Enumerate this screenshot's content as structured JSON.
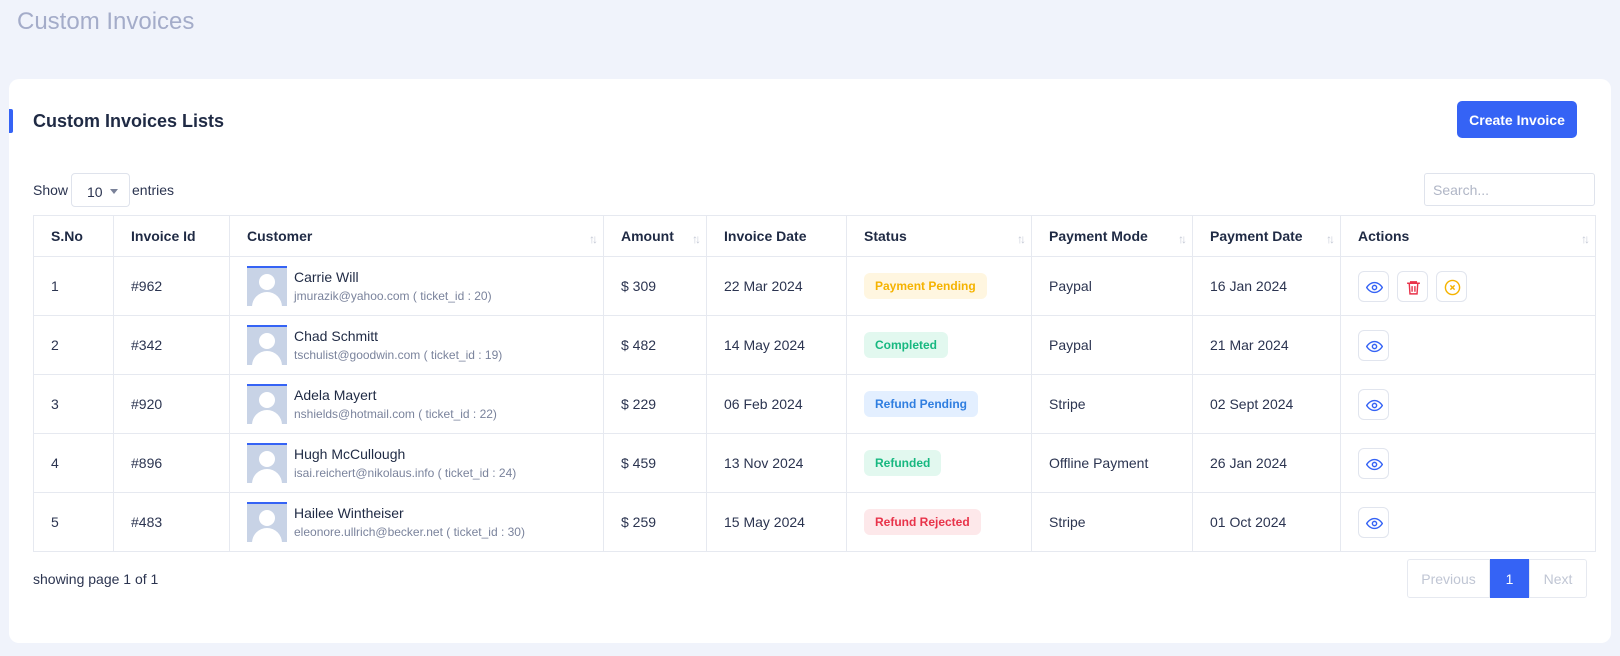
{
  "page": {
    "title": "Custom Invoices"
  },
  "card": {
    "title": "Custom Invoices Lists",
    "create_button": "Create Invoice"
  },
  "controls": {
    "show_label": "Show",
    "page_size": "10",
    "entries_label": "entries",
    "search_placeholder": "Search..."
  },
  "table": {
    "columns": [
      "S.No",
      "Invoice Id",
      "Customer",
      "Amount",
      "Invoice Date",
      "Status",
      "Payment Mode",
      "Payment Date",
      "Actions"
    ],
    "rows": [
      {
        "sno": "1",
        "invoice_id": "#962",
        "name": "Carrie Will",
        "email": "jmurazik@yahoo.com ( ticket_id : 20)",
        "amount": "$ 309",
        "invoice_date": "22 Mar 2024",
        "status": "Payment Pending",
        "payment_mode": "Paypal",
        "payment_date": "16 Jan 2024"
      },
      {
        "sno": "2",
        "invoice_id": "#342",
        "name": "Chad Schmitt",
        "email": "tschulist@goodwin.com ( ticket_id : 19)",
        "amount": "$ 482",
        "invoice_date": "14 May 2024",
        "status": "Completed",
        "payment_mode": "Paypal",
        "payment_date": "21 Mar 2024"
      },
      {
        "sno": "3",
        "invoice_id": "#920",
        "name": "Adela Mayert",
        "email": "nshields@hotmail.com ( ticket_id : 22)",
        "amount": "$ 229",
        "invoice_date": "06 Feb 2024",
        "status": "Refund Pending",
        "payment_mode": "Stripe",
        "payment_date": "02 Sept 2024"
      },
      {
        "sno": "4",
        "invoice_id": "#896",
        "name": "Hugh McCullough",
        "email": "isai.reichert@nikolaus.info ( ticket_id : 24)",
        "amount": "$ 459",
        "invoice_date": "13 Nov 2024",
        "status": "Refunded",
        "payment_mode": "Offline Payment",
        "payment_date": "26 Jan 2024"
      },
      {
        "sno": "5",
        "invoice_id": "#483",
        "name": "Hailee Wintheiser",
        "email": "eleonore.ullrich@becker.net ( ticket_id : 30)",
        "amount": "$ 259",
        "invoice_date": "15 May 2024",
        "status": "Refund Rejected",
        "payment_mode": "Stripe",
        "payment_date": "01 Oct 2024"
      }
    ]
  },
  "footer": {
    "showing_text": "showing page 1 of 1",
    "previous": "Previous",
    "current_page": "1",
    "next": "Next"
  },
  "colors": {
    "accent": "#3563f5",
    "pending": "#f5b300",
    "completed": "#17b880",
    "refund_pending": "#2f7ee0",
    "rejected": "#e8334a"
  }
}
